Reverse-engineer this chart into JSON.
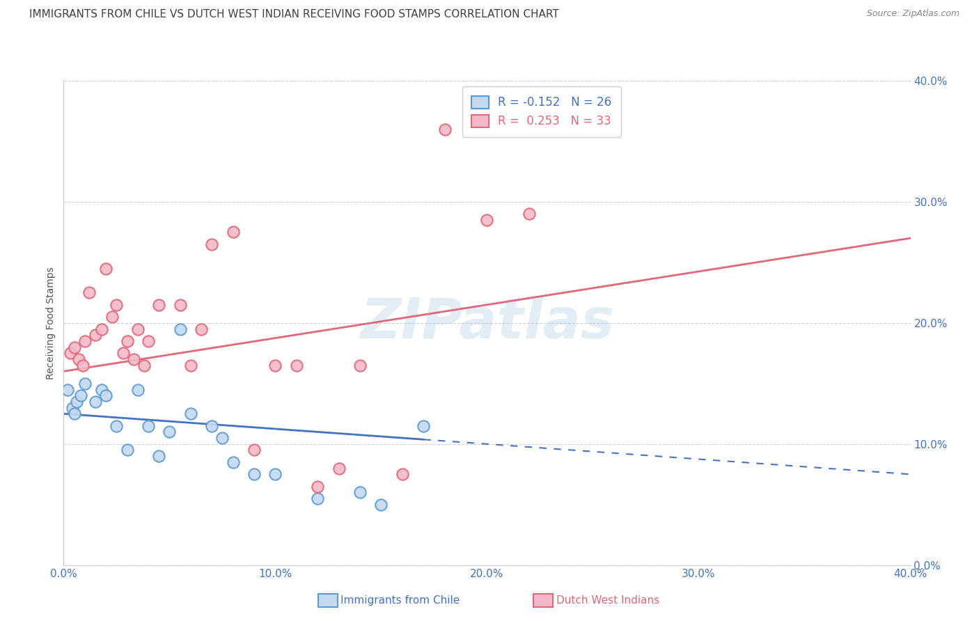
{
  "title": "IMMIGRANTS FROM CHILE VS DUTCH WEST INDIAN RECEIVING FOOD STAMPS CORRELATION CHART",
  "source": "Source: ZipAtlas.com",
  "ylabel": "Receiving Food Stamps",
  "axis_color": "#4472c4",
  "title_color": "#404040",
  "chile_color": "#c5d9f1",
  "chile_edge_color": "#5b9bd5",
  "chile_line_color": "#4472c4",
  "dwi_color": "#f4b8c8",
  "dwi_edge_color": "#e06878",
  "dwi_line_color": "#e06878",
  "grid_color": "#c8c8c8",
  "bg_color": "#ffffff",
  "watermark": "ZIPatlas",
  "watermark_color": "#9bbfe0",
  "legend_chile_r": "-0.152",
  "legend_chile_n": "26",
  "legend_dwi_r": "0.253",
  "legend_dwi_n": "33",
  "xlim": [
    0,
    40
  ],
  "ylim": [
    0,
    40
  ],
  "ytick_values": [
    0,
    10,
    20,
    30,
    40
  ],
  "ytick_labels": [
    "0.0%",
    "10.0%",
    "20.0%",
    "30.0%",
    "40.0%"
  ],
  "xtick_values": [
    0,
    10,
    20,
    30,
    40
  ],
  "xtick_labels": [
    "0.0%",
    "10.0%",
    "20.0%",
    "30.0%",
    "40.0%"
  ],
  "chile_x": [
    0.2,
    0.4,
    0.5,
    0.6,
    0.8,
    1.0,
    1.5,
    1.8,
    2.0,
    2.5,
    3.0,
    3.5,
    4.0,
    4.5,
    5.0,
    5.5,
    6.0,
    7.0,
    7.5,
    8.0,
    9.0,
    10.0,
    12.0,
    14.0,
    15.0,
    17.0
  ],
  "chile_y": [
    14.5,
    13.0,
    12.5,
    13.5,
    14.0,
    15.0,
    13.5,
    14.5,
    14.0,
    11.5,
    9.5,
    14.5,
    11.5,
    9.0,
    11.0,
    19.5,
    12.5,
    11.5,
    10.5,
    8.5,
    7.5,
    7.5,
    5.5,
    6.0,
    5.0,
    11.5
  ],
  "dwi_x": [
    0.3,
    0.5,
    0.7,
    0.9,
    1.0,
    1.2,
    1.5,
    1.8,
    2.0,
    2.3,
    2.5,
    2.8,
    3.0,
    3.3,
    3.5,
    3.8,
    4.0,
    4.5,
    5.5,
    6.0,
    6.5,
    7.0,
    8.0,
    9.0,
    10.0,
    11.0,
    12.0,
    13.0,
    14.0,
    16.0,
    18.0,
    20.0,
    22.0
  ],
  "dwi_y": [
    17.5,
    18.0,
    17.0,
    16.5,
    18.5,
    22.5,
    19.0,
    19.5,
    24.5,
    20.5,
    21.5,
    17.5,
    18.5,
    17.0,
    19.5,
    16.5,
    18.5,
    21.5,
    21.5,
    16.5,
    19.5,
    26.5,
    27.5,
    9.5,
    16.5,
    16.5,
    6.5,
    8.0,
    16.5,
    7.5,
    36.0,
    28.5,
    29.0
  ],
  "chile_reg_x0": 0,
  "chile_reg_x1": 40,
  "chile_reg_y0": 12.5,
  "chile_reg_y1": 7.5,
  "chile_solid_end_x": 17,
  "dwi_reg_x0": 0,
  "dwi_reg_x1": 40,
  "dwi_reg_y0": 16.0,
  "dwi_reg_y1": 27.0,
  "title_fontsize": 11,
  "tick_fontsize": 11,
  "label_fontsize": 10,
  "legend_fontsize": 12,
  "source_fontsize": 9,
  "watermark_fontsize": 58
}
